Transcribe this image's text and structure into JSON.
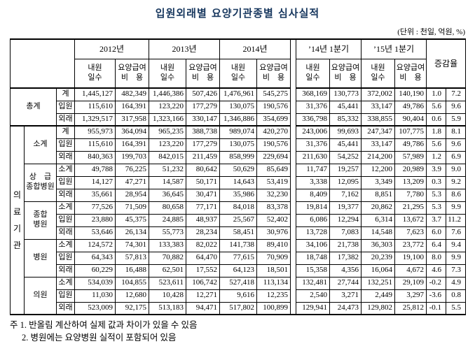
{
  "page": {
    "title": "입원외래별 요양기관종별 심사실적",
    "unit_note": "(단위 : 천일, 억원, %)"
  },
  "table": {
    "year_groups": [
      "2012년",
      "2013년",
      "2014년",
      "’14년 1분기",
      "’15년 1분기"
    ],
    "change_rate_label": "증감율",
    "sub_headers": {
      "visit_days_lines": [
        "내원",
        "일수"
      ],
      "benefit_cost_lines": [
        "요양급여",
        "비　용"
      ]
    },
    "section_label": "의료기관",
    "row_groups": [
      {
        "id": "total",
        "name_lines": [
          "총계"
        ],
        "rows": [
          {
            "label": "계",
            "values": [
              "1,445,127",
              "482,349",
              "1,446,386",
              "507,426",
              "1,476,961",
              "545,275",
              "368,169",
              "130,773",
              "372,002",
              "140,190",
              "1.0",
              "7.2"
            ]
          },
          {
            "label": "입원",
            "values": [
              "115,610",
              "164,391",
              "123,220",
              "177,279",
              "130,075",
              "190,576",
              "31,376",
              "45,441",
              "33,147",
              "49,786",
              "5.6",
              "9.6"
            ]
          },
          {
            "label": "외래",
            "values": [
              "1,329,517",
              "317,958",
              "1,323,166",
              "330,147",
              "1,346,886",
              "354,699",
              "336,798",
              "85,332",
              "338,855",
              "90,404",
              "0.6",
              "5.9"
            ]
          }
        ]
      },
      {
        "id": "medical-subtotal",
        "name_lines": [
          "소계"
        ],
        "rows": [
          {
            "label": "계",
            "values": [
              "955,973",
              "364,094",
              "965,235",
              "388,738",
              "989,074",
              "420,270",
              "243,006",
              "99,693",
              "247,347",
              "107,775",
              "1.8",
              "8.1"
            ]
          },
          {
            "label": "입원",
            "values": [
              "115,610",
              "164,391",
              "123,220",
              "177,279",
              "130,075",
              "190,576",
              "31,376",
              "45,441",
              "33,147",
              "49,786",
              "5.6",
              "9.6"
            ]
          },
          {
            "label": "외래",
            "values": [
              "840,363",
              "199,703",
              "842,015",
              "211,459",
              "858,999",
              "229,694",
              "211,630",
              "54,252",
              "214,200",
              "57,989",
              "1.2",
              "6.9"
            ]
          }
        ]
      },
      {
        "id": "tertiary-general-hospital",
        "name_lines": [
          "상　급",
          "종합병원"
        ],
        "rows": [
          {
            "label": "소계",
            "values": [
              "49,788",
              "76,225",
              "51,232",
              "80,642",
              "50,629",
              "85,649",
              "11,747",
              "19,257",
              "12,200",
              "20,989",
              "3.9",
              "9.0"
            ]
          },
          {
            "label": "입원",
            "values": [
              "14,127",
              "47,271",
              "14,587",
              "50,171",
              "14,643",
              "53,419",
              "3,338",
              "12,095",
              "3,349",
              "13,209",
              "0.3",
              "9.2"
            ]
          },
          {
            "label": "외래",
            "values": [
              "35,661",
              "28,954",
              "36,645",
              "30,471",
              "35,986",
              "32,230",
              "8,409",
              "7,162",
              "8,851",
              "7,780",
              "5.3",
              "8.6"
            ]
          }
        ]
      },
      {
        "id": "general-hospital",
        "name_lines": [
          "종합",
          "병원"
        ],
        "rows": [
          {
            "label": "소계",
            "values": [
              "77,526",
              "71,509",
              "80,658",
              "77,171",
              "84,018",
              "83,378",
              "19,814",
              "19,377",
              "20,862",
              "21,295",
              "5.3",
              "9.9"
            ]
          },
          {
            "label": "입원",
            "values": [
              "23,880",
              "45,375",
              "24,885",
              "48,937",
              "25,567",
              "52,402",
              "6,086",
              "12,294",
              "6,314",
              "13,672",
              "3.7",
              "11.2"
            ]
          },
          {
            "label": "외래",
            "values": [
              "53,646",
              "26,134",
              "55,773",
              "28,234",
              "58,451",
              "30,976",
              "13,728",
              "7,083",
              "14,548",
              "7,623",
              "6.0",
              "7.6"
            ]
          }
        ]
      },
      {
        "id": "hospital",
        "name_lines": [
          "병원"
        ],
        "rows": [
          {
            "label": "소계",
            "values": [
              "124,572",
              "74,301",
              "133,383",
              "82,022",
              "141,738",
              "89,410",
              "34,106",
              "21,738",
              "36,303",
              "23,772",
              "6.4",
              "9.4"
            ]
          },
          {
            "label": "입원",
            "values": [
              "64,343",
              "57,813",
              "70,882",
              "64,470",
              "77,615",
              "70,909",
              "18,748",
              "17,382",
              "20,239",
              "19,100",
              "8.0",
              "9.9"
            ]
          },
          {
            "label": "외래",
            "values": [
              "60,229",
              "16,488",
              "62,501",
              "17,552",
              "64,123",
              "18,501",
              "15,358",
              "4,356",
              "16,064",
              "4,672",
              "4.6",
              "7.3"
            ]
          }
        ]
      },
      {
        "id": "clinic",
        "name_lines": [
          "의원"
        ],
        "rows": [
          {
            "label": "소계",
            "values": [
              "534,039",
              "104,855",
              "523,611",
              "106,742",
              "527,418",
              "113,134",
              "132,481",
              "27,744",
              "132,251",
              "29,109",
              "-0.2",
              "4.9"
            ]
          },
          {
            "label": "입원",
            "values": [
              "11,030",
              "12,680",
              "10,428",
              "12,271",
              "9,616",
              "12,235",
              "2,540",
              "3,271",
              "2,449",
              "3,297",
              "-3.6",
              "0.8"
            ]
          },
          {
            "label": "외래",
            "values": [
              "523,009",
              "92,175",
              "513,183",
              "94,471",
              "517,802",
              "100,899",
              "129,941",
              "24,473",
              "129,802",
              "25,812",
              "-0.1",
              "5.5"
            ]
          }
        ]
      }
    ]
  },
  "notes": [
    "주 1. 반올림 계산하여 실제 값과 차이가 있을 수 있음",
    "2. 병원에는 요양병원 실적이 포함되어 있음"
  ]
}
